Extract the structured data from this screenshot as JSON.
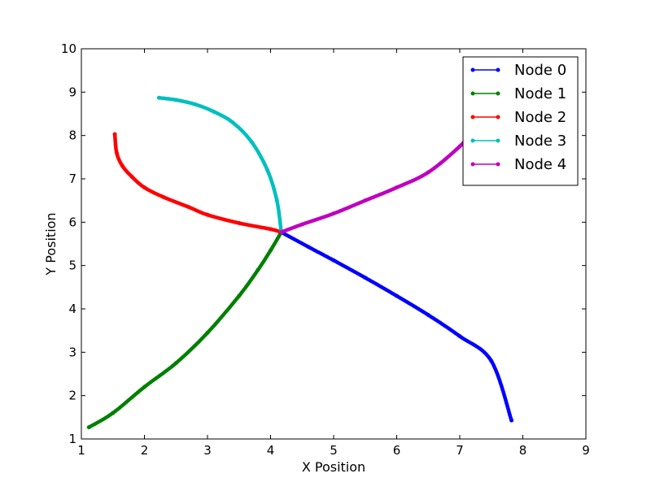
{
  "chart_data": {
    "type": "line",
    "xlabel": "X Position",
    "ylabel": "Y Position",
    "xlim": [
      1,
      9
    ],
    "ylim": [
      1,
      10
    ],
    "x_ticks": [
      1,
      2,
      3,
      4,
      5,
      6,
      7,
      8,
      9
    ],
    "y_ticks": [
      1,
      2,
      3,
      4,
      5,
      6,
      7,
      8,
      9,
      10
    ],
    "grid": false,
    "legend_position": "top-right",
    "marker": "dot",
    "series": [
      {
        "name": "Node 0",
        "color": "#0000ff",
        "points": [
          [
            4.17,
            5.77
          ],
          [
            4.6,
            5.43
          ],
          [
            5.0,
            5.12
          ],
          [
            5.5,
            4.72
          ],
          [
            6.0,
            4.3
          ],
          [
            6.5,
            3.86
          ],
          [
            7.0,
            3.37
          ],
          [
            7.5,
            2.8
          ],
          [
            7.82,
            1.43
          ]
        ]
      },
      {
        "name": "Node 1",
        "color": "#008000",
        "points": [
          [
            1.12,
            1.27
          ],
          [
            1.5,
            1.6
          ],
          [
            2.0,
            2.2
          ],
          [
            2.5,
            2.75
          ],
          [
            3.0,
            3.45
          ],
          [
            3.5,
            4.3
          ],
          [
            3.8,
            4.9
          ],
          [
            4.0,
            5.35
          ],
          [
            4.17,
            5.77
          ]
        ]
      },
      {
        "name": "Node 2",
        "color": "#ff0000",
        "points": [
          [
            1.53,
            8.03
          ],
          [
            1.56,
            7.6
          ],
          [
            1.65,
            7.3
          ],
          [
            1.8,
            7.05
          ],
          [
            2.0,
            6.8
          ],
          [
            2.3,
            6.58
          ],
          [
            2.7,
            6.35
          ],
          [
            3.0,
            6.17
          ],
          [
            3.5,
            5.98
          ],
          [
            4.0,
            5.84
          ],
          [
            4.17,
            5.77
          ]
        ]
      },
      {
        "name": "Node 3",
        "color": "#00bfbf",
        "points": [
          [
            2.23,
            8.87
          ],
          [
            2.5,
            8.82
          ],
          [
            2.8,
            8.72
          ],
          [
            3.1,
            8.55
          ],
          [
            3.4,
            8.3
          ],
          [
            3.7,
            7.85
          ],
          [
            3.95,
            7.2
          ],
          [
            4.1,
            6.5
          ],
          [
            4.17,
            5.77
          ]
        ]
      },
      {
        "name": "Node 4",
        "color": "#bf00bf",
        "points": [
          [
            4.17,
            5.77
          ],
          [
            4.5,
            5.95
          ],
          [
            5.0,
            6.2
          ],
          [
            5.5,
            6.5
          ],
          [
            6.0,
            6.8
          ],
          [
            6.5,
            7.15
          ],
          [
            7.0,
            7.75
          ],
          [
            7.2,
            8.1
          ]
        ]
      }
    ]
  }
}
